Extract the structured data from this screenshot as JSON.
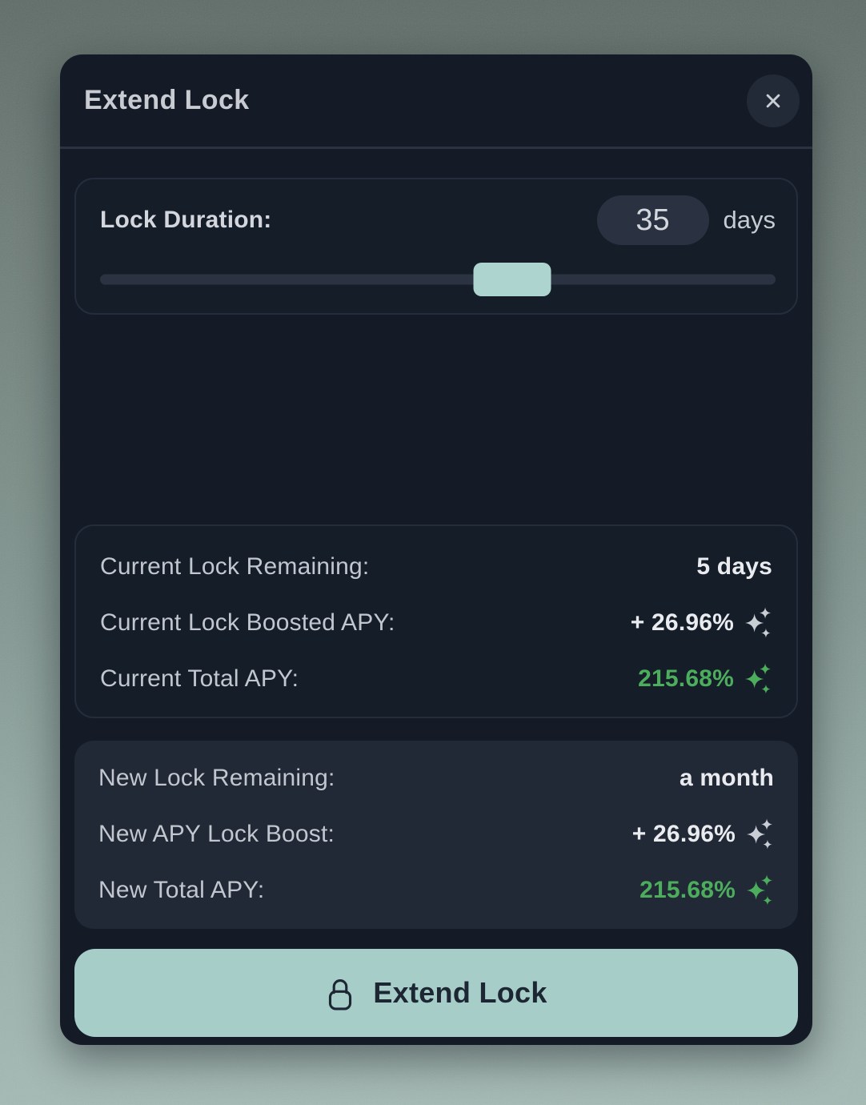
{
  "colors": {
    "background_top": "#5d6b66",
    "background_bottom": "#a4bab4",
    "dialog_background": "#141b27",
    "card_border": "#252d3c",
    "new_card_background": "#212836",
    "pill_background": "#2a3241",
    "slider_handle": "#aed4cf",
    "button_mint": "#a6cdc8",
    "button_text": "#1d2633",
    "positive_green": "#4cae5c",
    "label_gray": "#c2c7cf",
    "value_white": "#e9ebef"
  },
  "icons": {
    "close": "✕",
    "lock": "padlock-outline",
    "sparkles": "three four-point stars ✦"
  },
  "dialog": {
    "title": "Extend Lock",
    "duration_card": {
      "label": "Lock Duration:",
      "value": "35",
      "unit": "days",
      "slider_percent": 61
    },
    "current_card": {
      "rows": [
        {
          "label": "Current Lock Remaining:",
          "value": "5 days"
        },
        {
          "label": "Current Lock Boosted APY:",
          "value": "+ 26.96%"
        },
        {
          "label": "Current Total APY:",
          "value": "215.68%"
        }
      ]
    },
    "new_card": {
      "rows": [
        {
          "label": "New Lock Remaining:",
          "value": "a month"
        },
        {
          "label": "New APY Lock Boost:",
          "value": "+ 26.96%"
        },
        {
          "label": "New Total APY:",
          "value": "215.68%"
        }
      ]
    },
    "submit_button": {
      "label": "Extend Lock"
    }
  }
}
